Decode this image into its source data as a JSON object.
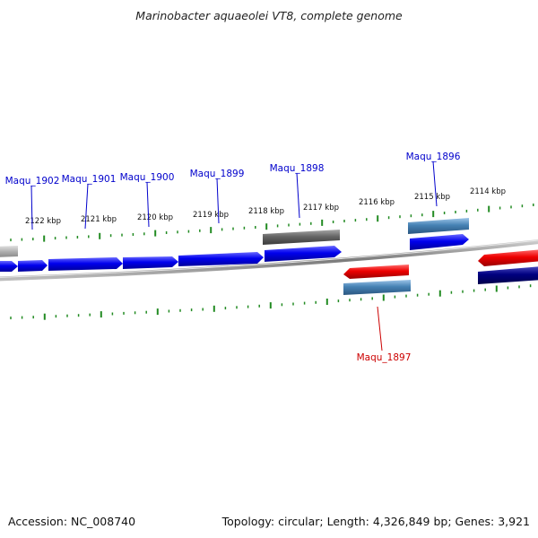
{
  "title": "Marinobacter aquaeolei VT8, complete genome",
  "footer": {
    "accession": "Accession: NC_008740",
    "summary": "Topology: circular; Length: 4,326,849 bp; Genes: 3,921"
  },
  "colors": {
    "gene_blue": "#0000ee",
    "gene_red": "#ee0000",
    "gene_gray": "#666666",
    "gene_steelblue": "#4682b4",
    "gene_navy": "#000080",
    "tick_green": "#228b22",
    "label_blue": "#0000cc",
    "label_red": "#cc0000",
    "backbone": "#888888"
  },
  "scale_labels": [
    "2122 kbp",
    "2121 kbp",
    "2120 kbp",
    "2119 kbp",
    "2118 kbp",
    "2117 kbp",
    "2116 kbp",
    "2115 kbp",
    "2114 kbp"
  ],
  "gene_labels": [
    {
      "id": "Maqu_1902",
      "color": "label_blue"
    },
    {
      "id": "Maqu_1901",
      "color": "label_blue"
    },
    {
      "id": "Maqu_1900",
      "color": "label_blue"
    },
    {
      "id": "Maqu_1899",
      "color": "label_blue"
    },
    {
      "id": "Maqu_1898",
      "color": "label_blue"
    },
    {
      "id": "Maqu_1896",
      "color": "label_blue"
    },
    {
      "id": "Maqu_1897",
      "color": "label_red"
    }
  ]
}
